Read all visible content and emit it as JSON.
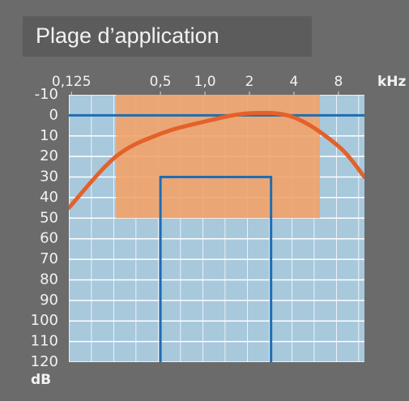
{
  "chart_data": {
    "type": "line",
    "title": "Plage d’application",
    "x_unit": "kHz",
    "y_unit": "dB",
    "xscale": "log",
    "xlim": [
      0.12,
      12
    ],
    "ylim": [
      -10,
      120
    ],
    "xticks": [
      {
        "value": 0.125,
        "label": "0,125"
      },
      {
        "value": 0.5,
        "label": "0,5"
      },
      {
        "value": 1,
        "label": "1,0"
      },
      2,
      4,
      8
    ],
    "yticks": [
      -10,
      0,
      10,
      20,
      30,
      40,
      50,
      60,
      70,
      80,
      90,
      100,
      110,
      120
    ],
    "grid": true,
    "series": [
      {
        "color": "#e4612a",
        "x": [
          0.12,
          0.25,
          0.5,
          1,
          2,
          4,
          8,
          12
        ],
        "values": [
          45,
          20,
          9,
          3,
          -1,
          1,
          15,
          30
        ]
      }
    ],
    "shapes": [
      {
        "kind": "rect",
        "color": "#f4a067",
        "x": [
          0.25,
          6
        ],
        "y": [
          -10,
          50
        ]
      },
      {
        "kind": "bracket",
        "color": "#1f6db3",
        "x": [
          0.5,
          2.8
        ],
        "y": [
          30,
          120
        ]
      },
      {
        "kind": "hline",
        "color": "#1f6db3",
        "y": 0
      }
    ]
  }
}
